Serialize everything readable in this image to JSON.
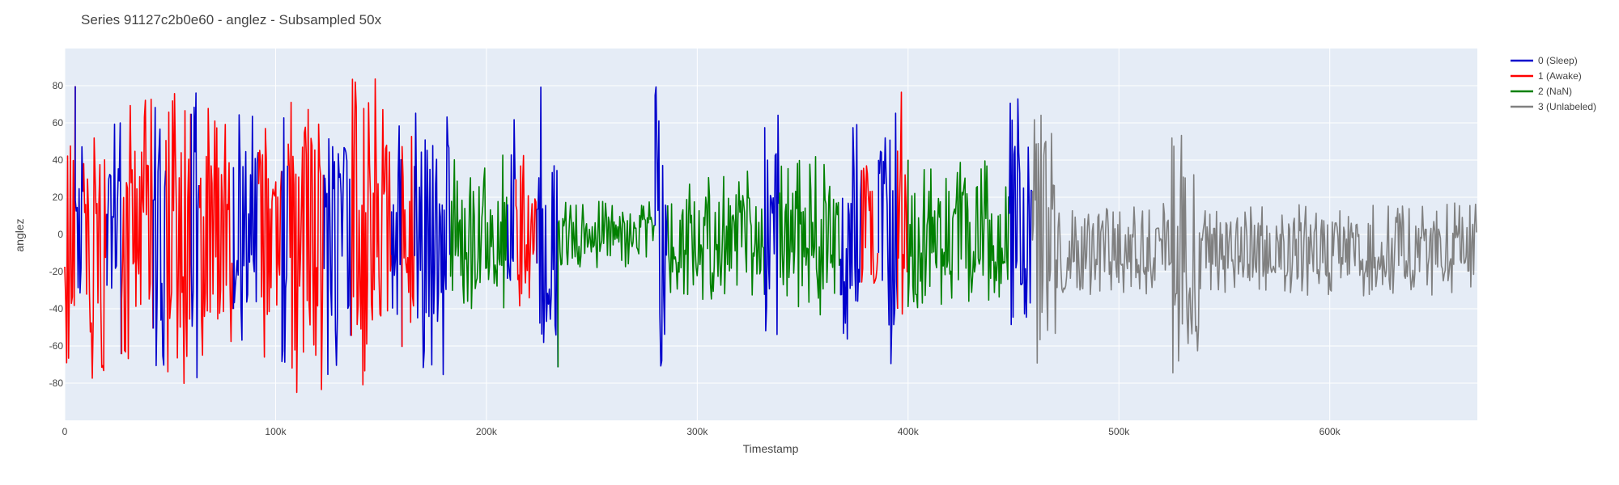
{
  "chart_data": {
    "type": "line",
    "title": "Series 91127c2b0e60 - anglez - Subsampled 50x",
    "xlabel": "Timestamp",
    "ylabel": "anglez",
    "xlim": [
      0,
      670000
    ],
    "ylim": [
      -100,
      100
    ],
    "x_ticks": [
      {
        "value": 0,
        "label": "0"
      },
      {
        "value": 100000,
        "label": "100k"
      },
      {
        "value": 200000,
        "label": "200k"
      },
      {
        "value": 300000,
        "label": "300k"
      },
      {
        "value": 400000,
        "label": "400k"
      },
      {
        "value": 500000,
        "label": "500k"
      },
      {
        "value": 600000,
        "label": "600k"
      }
    ],
    "y_ticks": [
      -80,
      -60,
      -40,
      -20,
      0,
      20,
      40,
      60,
      80
    ],
    "grid": true,
    "legend_position": "top-right",
    "series": [
      {
        "name": "0 (Sleep)",
        "color": "#0000cc"
      },
      {
        "name": "1 (Awake)",
        "color": "#ff0000"
      },
      {
        "name": "2 (NaN)",
        "color": "#008000"
      },
      {
        "name": "3 (Unlabeled)",
        "color": "#808080"
      }
    ],
    "segments": [
      {
        "series": 1,
        "x_start": 0,
        "x_end": 5000,
        "amplitude": 80
      },
      {
        "series": 0,
        "x_start": 5000,
        "x_end": 9000,
        "amplitude": 55
      },
      {
        "series": 1,
        "x_start": 9000,
        "x_end": 20000,
        "amplitude": 80
      },
      {
        "series": 0,
        "x_start": 20000,
        "x_end": 27000,
        "amplitude": 70
      },
      {
        "series": 1,
        "x_start": 27000,
        "x_end": 42000,
        "amplitude": 80
      },
      {
        "series": 0,
        "x_start": 42000,
        "x_end": 48000,
        "amplitude": 75
      },
      {
        "series": 1,
        "x_start": 48000,
        "x_end": 60000,
        "amplitude": 85
      },
      {
        "series": 0,
        "x_start": 60000,
        "x_end": 64000,
        "amplitude": 80
      },
      {
        "series": 1,
        "x_start": 64000,
        "x_end": 80000,
        "amplitude": 70
      },
      {
        "series": 0,
        "x_start": 80000,
        "x_end": 92000,
        "amplitude": 75
      },
      {
        "series": 1,
        "x_start": 92000,
        "x_end": 103000,
        "amplitude": 70
      },
      {
        "series": 0,
        "x_start": 103000,
        "x_end": 106000,
        "amplitude": 70
      },
      {
        "series": 1,
        "x_start": 106000,
        "x_end": 123000,
        "amplitude": 85
      },
      {
        "series": 0,
        "x_start": 123000,
        "x_end": 136000,
        "amplitude": 85
      },
      {
        "series": 1,
        "x_start": 136000,
        "x_end": 155000,
        "amplitude": 85
      },
      {
        "series": 0,
        "x_start": 155000,
        "x_end": 160000,
        "amplitude": 75
      },
      {
        "series": 1,
        "x_start": 160000,
        "x_end": 166000,
        "amplitude": 75
      },
      {
        "series": 0,
        "x_start": 166000,
        "x_end": 183000,
        "amplitude": 80
      },
      {
        "series": 2,
        "x_start": 183000,
        "x_end": 210000,
        "amplitude": 45
      },
      {
        "series": 0,
        "x_start": 210000,
        "x_end": 214000,
        "amplitude": 80
      },
      {
        "series": 1,
        "x_start": 214000,
        "x_end": 224000,
        "amplitude": 45
      },
      {
        "series": 0,
        "x_start": 224000,
        "x_end": 234000,
        "amplitude": 85
      },
      {
        "series": 2,
        "x_start": 234000,
        "x_end": 280000,
        "amplitude": 18
      },
      {
        "series": 0,
        "x_start": 280000,
        "x_end": 286000,
        "amplitude": 80
      },
      {
        "series": 2,
        "x_start": 286000,
        "x_end": 332000,
        "amplitude": 35
      },
      {
        "series": 0,
        "x_start": 332000,
        "x_end": 339000,
        "amplitude": 70
      },
      {
        "series": 2,
        "x_start": 339000,
        "x_end": 368000,
        "amplitude": 45
      },
      {
        "series": 0,
        "x_start": 368000,
        "x_end": 378000,
        "amplitude": 60
      },
      {
        "series": 1,
        "x_start": 378000,
        "x_end": 386000,
        "amplitude": 45
      },
      {
        "series": 0,
        "x_start": 386000,
        "x_end": 395000,
        "amplitude": 85
      },
      {
        "series": 1,
        "x_start": 395000,
        "x_end": 400000,
        "amplitude": 80
      },
      {
        "series": 2,
        "x_start": 400000,
        "x_end": 448000,
        "amplitude": 40
      },
      {
        "series": 0,
        "x_start": 448000,
        "x_end": 459000,
        "amplitude": 80
      },
      {
        "series": 3,
        "x_start": 459000,
        "x_end": 670000,
        "amplitude": 25
      }
    ]
  }
}
